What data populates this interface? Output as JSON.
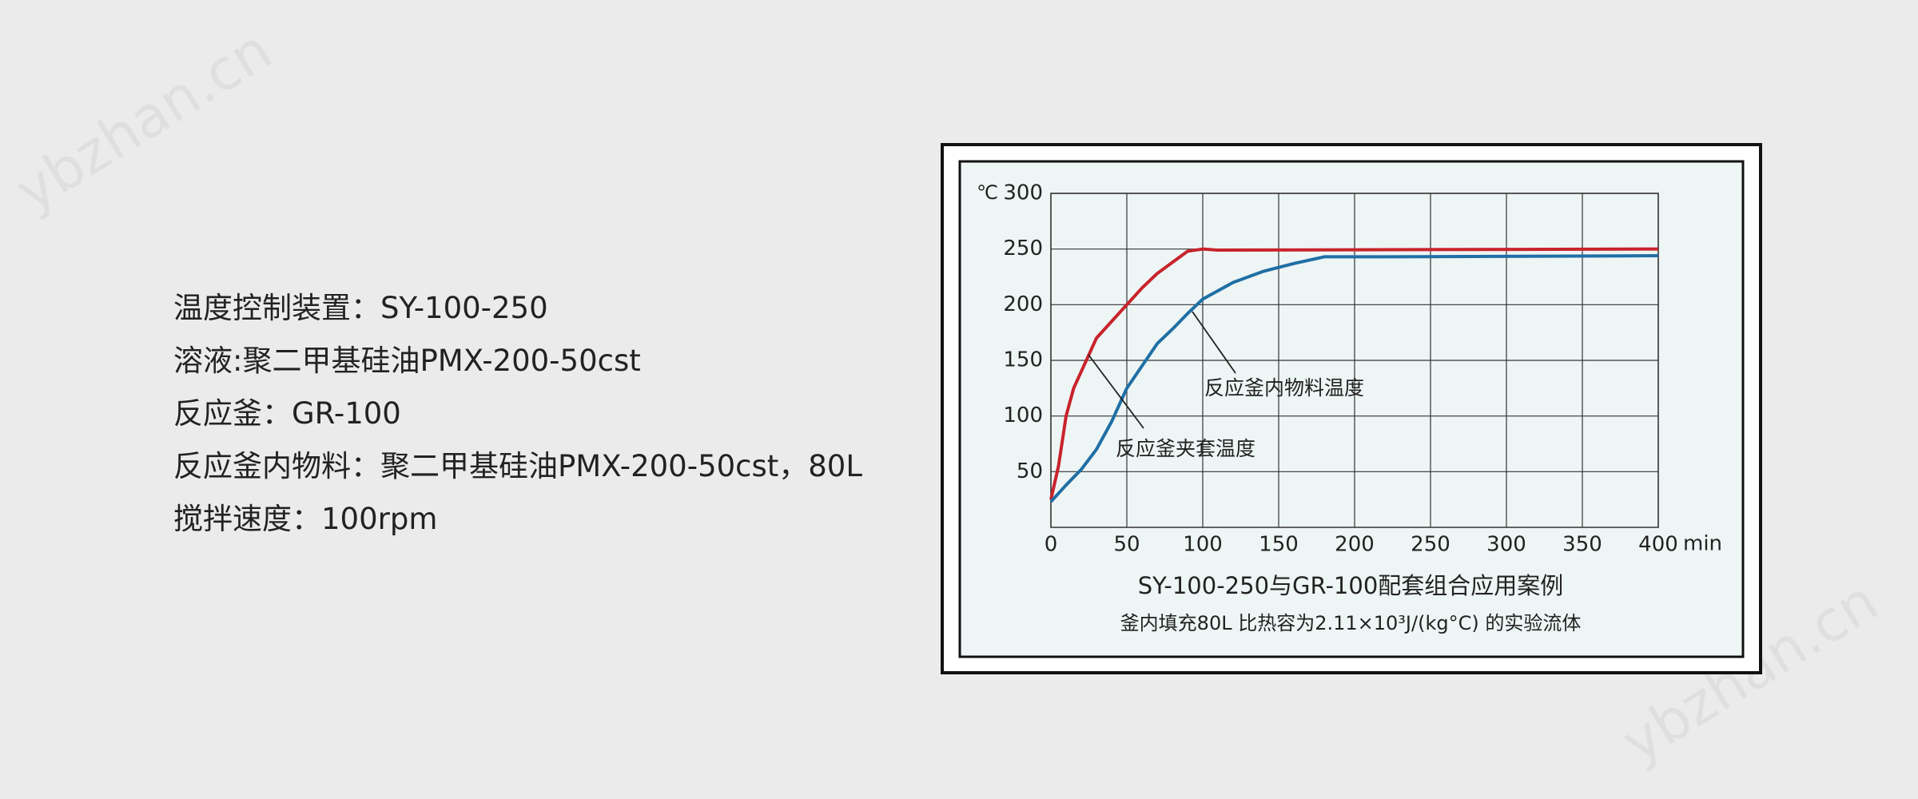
{
  "watermark": "ybzhan.cn",
  "specs": [
    "温度控制装置：SY-100-250",
    "溶液:聚二甲基硅油PMX-200-50cst",
    "反应釜：GR-100",
    "反应釜内物料：聚二甲基硅油PMX-200-50cst，80L",
    "搅拌速度：100rpm"
  ],
  "chart_data": {
    "type": "line",
    "title": "SY-100-250与GR-100配套组合应用案例",
    "subtitle": "釜内填充80L 比热容为2.11×10³J/(kg°C) 的实验流体",
    "x_unit": "min",
    "y_unit": "℃",
    "xlim": [
      0,
      400
    ],
    "xticks": [
      0,
      50,
      100,
      150,
      200,
      250,
      300,
      350,
      400
    ],
    "ylim": [
      0,
      300
    ],
    "yticks": [
      50,
      100,
      150,
      200,
      250,
      300
    ],
    "grid": true,
    "series": [
      {
        "name": "反应釜夹套温度",
        "color": "#c8232b",
        "x": [
          0,
          5,
          10,
          15,
          20,
          25,
          30,
          40,
          50,
          60,
          70,
          80,
          90,
          100,
          110,
          400
        ],
        "values": [
          25,
          55,
          100,
          125,
          140,
          155,
          170,
          185,
          200,
          215,
          228,
          238,
          248,
          250,
          249,
          250
        ]
      },
      {
        "name": "反应釜内物料温度",
        "color": "#1f6fa5",
        "x": [
          0,
          10,
          20,
          30,
          40,
          50,
          60,
          70,
          80,
          90,
          100,
          120,
          140,
          160,
          180,
          220,
          400
        ],
        "values": [
          23,
          38,
          52,
          70,
          95,
          125,
          145,
          165,
          178,
          192,
          205,
          220,
          230,
          237,
          243,
          243,
          244
        ]
      }
    ]
  }
}
